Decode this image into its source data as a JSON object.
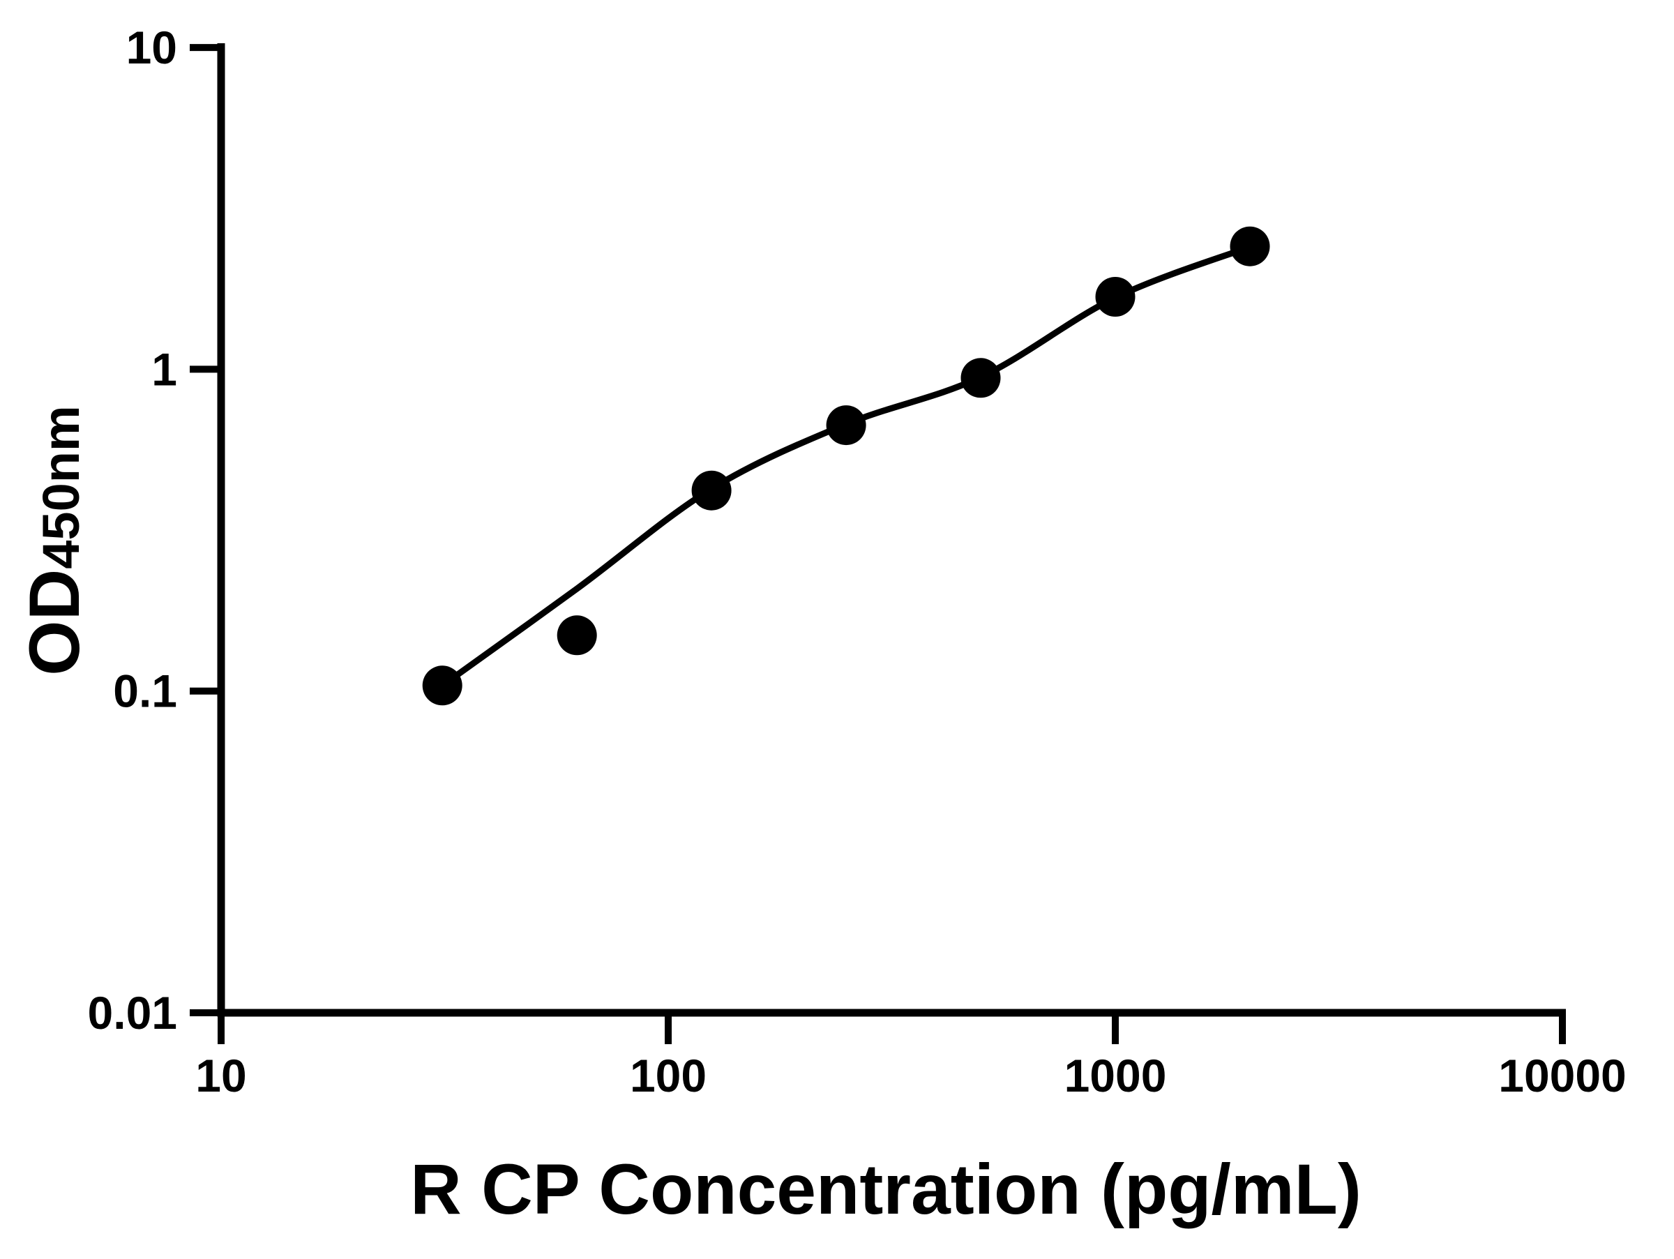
{
  "chart_data": {
    "type": "scatter",
    "title": "",
    "xlabel": "R CP Concentration (pg/mL)",
    "ylabel_main": "OD",
    "ylabel_sub": "450nm",
    "x_scale": "log",
    "y_scale": "log",
    "xlim": [
      10,
      10000
    ],
    "ylim": [
      0.01,
      10
    ],
    "x_ticks": [
      10,
      100,
      1000,
      10000
    ],
    "x_tick_labels": [
      "10",
      "100",
      "1000",
      "10000"
    ],
    "y_ticks": [
      10,
      1,
      0.1,
      0.01
    ],
    "y_tick_labels": [
      "10",
      "1",
      "0.1",
      "0.01"
    ],
    "grid": false,
    "legend_position": "none",
    "marker_color": "#000000",
    "curve_color": "#000000",
    "background_color": "#ffffff",
    "points": [
      {
        "x": 31.25,
        "y": 0.104
      },
      {
        "x": 62.5,
        "y": 0.149
      },
      {
        "x": 125,
        "y": 0.42
      },
      {
        "x": 250,
        "y": 0.67
      },
      {
        "x": 500,
        "y": 0.94
      },
      {
        "x": 1000,
        "y": 1.68
      },
      {
        "x": 2000,
        "y": 2.41
      }
    ],
    "fit_curve": [
      {
        "x": 31.25,
        "y": 0.104
      },
      {
        "x": 62.5,
        "y": 0.208
      },
      {
        "x": 125,
        "y": 0.425
      },
      {
        "x": 250,
        "y": 0.675
      },
      {
        "x": 500,
        "y": 0.945
      },
      {
        "x": 1000,
        "y": 1.67
      },
      {
        "x": 2000,
        "y": 2.4
      }
    ]
  }
}
